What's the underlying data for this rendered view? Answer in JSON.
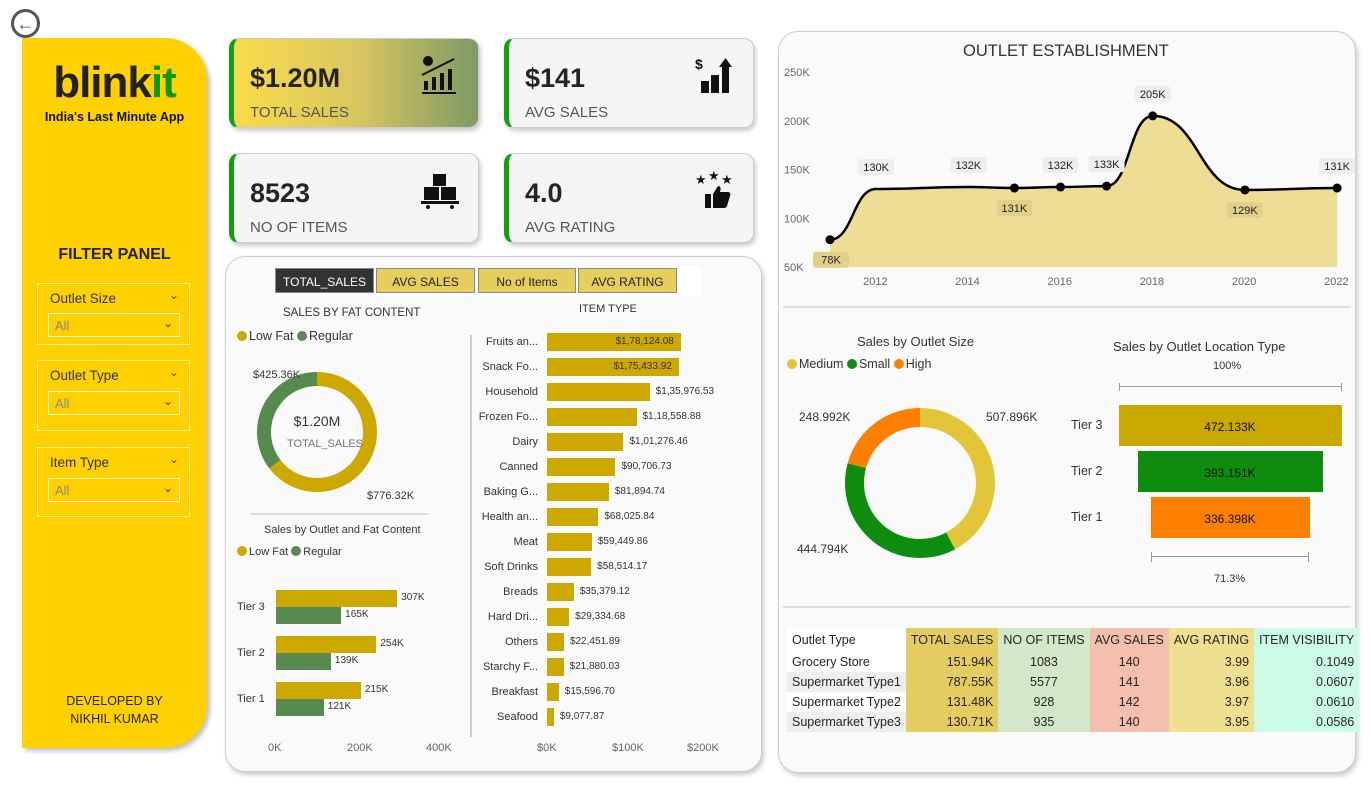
{
  "nav": {
    "back_icon": "back-arrow-circle-icon"
  },
  "brand": {
    "logo_dark": "blink",
    "logo_green": "it",
    "tagline": "India's Last Minute App",
    "green": "#0C9A0C",
    "yellow": "#FFD100"
  },
  "filter_panel": {
    "title": "FILTER PANEL",
    "filters": [
      {
        "label": "Outlet Size",
        "value": "All"
      },
      {
        "label": "Outlet Type",
        "value": "All"
      },
      {
        "label": "Item Type",
        "value": "All"
      }
    ],
    "developer_line1": "DEVELOPED BY",
    "developer_line2": "NIKHIL KUMAR"
  },
  "kpis": [
    {
      "value": "$1.20M",
      "label": "TOTAL SALES",
      "icon": "sales-growth-icon"
    },
    {
      "value": "$141",
      "label": "AVG SALES",
      "icon": "dollar-bars-up-icon"
    },
    {
      "value": "8523",
      "label": "NO OF ITEMS",
      "icon": "boxes-pallet-icon"
    },
    {
      "value": "4.0",
      "label": "AVG RATING",
      "icon": "stars-thumbs-up-icon"
    }
  ],
  "tabs": [
    {
      "label": "TOTAL_SALES",
      "active": true
    },
    {
      "label": "AVG SALES"
    },
    {
      "label": "No of Items"
    },
    {
      "label": "AVG RATING"
    }
  ],
  "chart_data": [
    {
      "type": "pie",
      "title": "SALES BY FAT CONTENT",
      "center_value": "$1.20M",
      "center_label": "TOTAL_SALES",
      "legend": [
        "Low Fat",
        "Regular"
      ],
      "values": [
        776.32,
        425.36
      ],
      "labels": [
        "$776.32K",
        "$425.36K"
      ],
      "colors": [
        "#CCA800",
        "#578A4E"
      ]
    },
    {
      "type": "bar",
      "title": "Sales by Outlet and Fat Content",
      "categories": [
        "Tier 3",
        "Tier 2",
        "Tier 1"
      ],
      "series": [
        {
          "name": "Low Fat",
          "values": [
            307,
            254,
            215
          ],
          "labels": [
            "307K",
            "254K",
            "215K"
          ],
          "color": "#CCA800"
        },
        {
          "name": "Regular",
          "values": [
            165,
            139,
            121
          ],
          "labels": [
            "165K",
            "139K",
            "121K"
          ],
          "color": "#578A4E"
        }
      ],
      "xticks": [
        "0K",
        "200K",
        "400K"
      ],
      "xlim": [
        0,
        400
      ]
    },
    {
      "type": "bar",
      "title": "ITEM TYPE",
      "categories": [
        "Fruits an...",
        "Snack Fo...",
        "Household",
        "Frozen Fo...",
        "Dairy",
        "Canned",
        "Baking G...",
        "Health an...",
        "Meat",
        "Soft Drinks",
        "Breads",
        "Hard Dri...",
        "Others",
        "Starchy F...",
        "Breakfast",
        "Seafood"
      ],
      "values": [
        178124.08,
        175433.92,
        135976.53,
        118558.88,
        101276.46,
        90706.73,
        81894.74,
        68025.84,
        59449.86,
        58514.17,
        35379.12,
        29334.68,
        22451.89,
        21880.03,
        15596.7,
        9077.87
      ],
      "labels": [
        "$1,78,124.08",
        "$1,75,433.92",
        "$1,35,976.53",
        "$1,18,558.88",
        "$1,01,276.46",
        "$90,706.73",
        "$81,894.74",
        "$68,025.84",
        "$59,449.86",
        "$58,514.17",
        "$35,379.12",
        "$29,334.68",
        "$22,451.89",
        "$21,880.03",
        "$15,596.70",
        "$9,077.87"
      ],
      "xticks": [
        "$0K",
        "$100K",
        "$200K"
      ],
      "xlim": [
        0,
        200000
      ],
      "color": "#CCA800"
    },
    {
      "type": "area",
      "title": "OUTLET ESTABLISHMENT",
      "x": [
        2011,
        2012,
        2014,
        2015,
        2016,
        2017,
        2018,
        2020,
        2022
      ],
      "values": [
        78,
        130,
        132,
        131,
        132,
        133,
        205,
        129,
        131
      ],
      "labels": [
        "78K",
        "130K",
        "132K",
        "131K",
        "132K",
        "133K",
        "205K",
        "129K",
        "131K"
      ],
      "yticks": [
        "50K",
        "100K",
        "150K",
        "200K",
        "250K"
      ],
      "ylim": [
        50,
        250
      ],
      "xticks": [
        "2012",
        "2014",
        "2016",
        "2018",
        "2020",
        "2022"
      ],
      "color": "#EEDD94"
    },
    {
      "type": "pie",
      "title": "Sales by Outlet Size",
      "legend": [
        "Medium",
        "Small",
        "High"
      ],
      "values": [
        507.896,
        444.794,
        248.992
      ],
      "labels": [
        "507.896K",
        "444.794K",
        "248.992K"
      ],
      "colors": [
        "#E3C53A",
        "#0E8C0E",
        "#FF8000"
      ]
    },
    {
      "type": "bar",
      "title": "Sales by Outlet Location Type",
      "categories": [
        "Tier 3",
        "Tier 2",
        "Tier 1"
      ],
      "values": [
        472.133,
        393.151,
        336.398
      ],
      "labels": [
        "472.133K",
        "393.151K",
        "336.398K"
      ],
      "colors": [
        "#C9A800",
        "#0E8C0E",
        "#FF8000"
      ],
      "top_pct": "100%",
      "bottom_pct": "71.3%"
    }
  ],
  "table": {
    "headers": [
      "Outlet Type",
      "TOTAL SALES",
      "NO OF ITEMS",
      "AVG SALES",
      "AVG RATING",
      "ITEM VISIBILITY"
    ],
    "header_colors": [
      "#FFFFFF",
      "#E5CC60",
      "#D2E8C8",
      "#F5BFAE",
      "#EFDF90",
      "#CCFBE6"
    ],
    "rows": [
      [
        "Grocery Store",
        "151.94K",
        "1083",
        "140",
        "3.99",
        "0.1049"
      ],
      [
        "Supermarket Type1",
        "787.55K",
        "5577",
        "141",
        "3.96",
        "0.0607"
      ],
      [
        "Supermarket Type2",
        "131.48K",
        "928",
        "142",
        "3.97",
        "0.0610"
      ],
      [
        "Supermarket Type3",
        "130.71K",
        "935",
        "140",
        "3.95",
        "0.0586"
      ]
    ]
  }
}
